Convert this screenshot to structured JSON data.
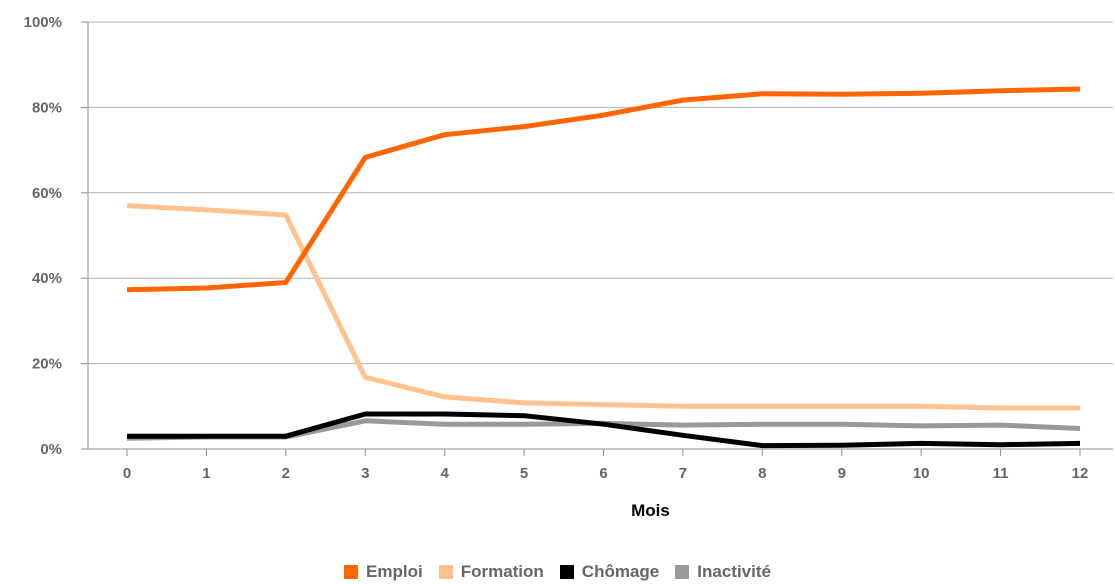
{
  "chart_data": {
    "type": "line",
    "x": [
      0,
      1,
      2,
      3,
      4,
      5,
      6,
      7,
      8,
      9,
      10,
      11,
      12
    ],
    "xlabel": "Mois",
    "ylabel": "",
    "ylim": [
      0,
      100
    ],
    "y_ticks": [
      "0%",
      "20%",
      "40%",
      "60%",
      "80%",
      "100%"
    ],
    "y_tick_values": [
      0,
      20,
      40,
      60,
      80,
      100
    ],
    "grid": "horizontal",
    "legend_position": "bottom",
    "series": [
      {
        "name": "Emploi",
        "color": "#FF6600",
        "values": [
          37.3,
          37.7,
          39,
          68.3,
          73.6,
          75.5,
          78.2,
          81.7,
          83.2,
          83.1,
          83.3,
          83.9,
          84.3
        ]
      },
      {
        "name": "Formation",
        "color": "#FFC28F",
        "values": [
          57,
          56,
          54.8,
          16.8,
          12.2,
          10.8,
          10.4,
          10,
          10,
          10,
          10,
          9.6,
          9.6
        ]
      },
      {
        "name": "Chômage",
        "color": "#000000",
        "values": [
          3,
          3,
          3,
          8.2,
          8.2,
          7.8,
          5.8,
          3.2,
          0.8,
          0.9,
          1.3,
          1,
          1.3
        ]
      },
      {
        "name": "Inactivité",
        "color": "#999999",
        "values": [
          2.5,
          2.8,
          2.8,
          6.6,
          5.8,
          5.8,
          6,
          5.6,
          5.8,
          5.8,
          5.4,
          5.6,
          4.8
        ]
      }
    ]
  }
}
